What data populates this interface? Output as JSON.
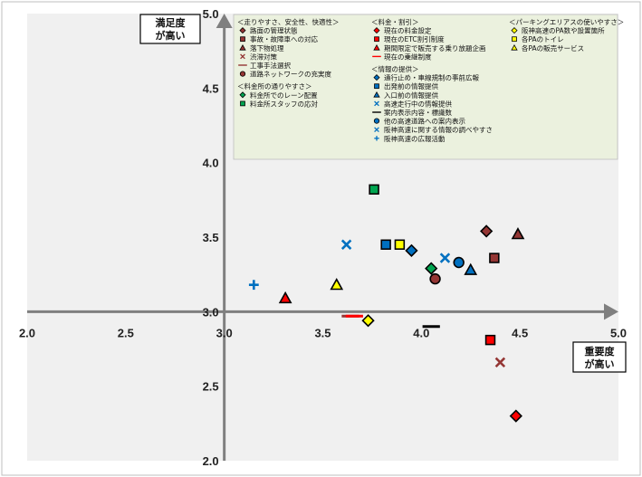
{
  "chart_data": {
    "type": "scatter",
    "xlim": [
      2.0,
      5.0
    ],
    "ylim": [
      2.0,
      5.0
    ],
    "origin": [
      3.0,
      3.0
    ],
    "x_ticks": [
      "2.0",
      "2.5",
      "3.0",
      "3.5",
      "4.0",
      "4.5",
      "5.0"
    ],
    "y_ticks": [
      "2.0",
      "2.5",
      "3.0",
      "3.5",
      "4.0",
      "4.5",
      "5.0"
    ],
    "x_axis_label": [
      "重要度",
      "が高い"
    ],
    "y_axis_label": [
      "満足度",
      "が高い"
    ],
    "legend_placement": "top-right inside plot",
    "colors": {
      "plot_bg": "#f0f0f0",
      "legend_bg": "#ebf1de",
      "axis": "#7f7f7f",
      "brown": "#943634",
      "red": "#ff0000",
      "green": "#00a550",
      "blue": "#0070c0",
      "yellow": "#ffff00"
    },
    "groups": [
      {
        "title": "＜走りやすさ、安全性、快適性＞",
        "series": [
          {
            "name": "路面の管理状態",
            "marker": "diamond",
            "color": "#943634",
            "stroke": "#000",
            "x": 4.33,
            "y": 3.54
          },
          {
            "name": "事故・故障車への対応",
            "marker": "square",
            "color": "#943634",
            "stroke": "#000",
            "x": 4.37,
            "y": 3.36
          },
          {
            "name": "落下物処理",
            "marker": "triangle",
            "color": "#943634",
            "stroke": "#000",
            "x": 4.49,
            "y": 3.52
          },
          {
            "name": "渋滞対策",
            "marker": "x",
            "color": "#943634",
            "stroke": "none",
            "x": 4.4,
            "y": 2.66
          },
          {
            "name": "工事手法選択",
            "marker": "dash",
            "color": "#943634",
            "stroke": "none",
            "x": 3.64,
            "y": 2.97
          },
          {
            "name": "道路ネットワークの充実度",
            "marker": "circle",
            "color": "#943634",
            "stroke": "#000",
            "x": 4.07,
            "y": 3.22
          }
        ]
      },
      {
        "title": "＜料金所の通りやすさ＞",
        "series": [
          {
            "name": "料金所でのレーン配置",
            "marker": "diamond",
            "color": "#00a550",
            "stroke": "#000",
            "x": 4.05,
            "y": 3.29
          },
          {
            "name": "料金所スタッフの応対",
            "marker": "square",
            "color": "#00a550",
            "stroke": "#000",
            "x": 3.76,
            "y": 3.82
          }
        ]
      },
      {
        "title": "＜料金・割引＞",
        "series": [
          {
            "name": "現在の料金設定",
            "marker": "diamond",
            "color": "#ff0000",
            "stroke": "#000",
            "x": 4.48,
            "y": 2.3
          },
          {
            "name": "現在のETC割引制度",
            "marker": "square",
            "color": "#ff0000",
            "stroke": "#000",
            "x": 4.35,
            "y": 2.81
          },
          {
            "name": "期間限定で販売する乗り放題企画",
            "marker": "triangle",
            "color": "#ff0000",
            "stroke": "#000",
            "x": 3.31,
            "y": 3.09
          },
          {
            "name": "現在の乗継制度",
            "marker": "dash",
            "color": "#ff0000",
            "stroke": "none",
            "x": 3.66,
            "y": 2.97
          }
        ]
      },
      {
        "title": "＜情報の提供＞",
        "series": [
          {
            "name": "通行止め・車線規制の事前広報",
            "marker": "diamond",
            "color": "#0070c0",
            "stroke": "#000",
            "x": 3.95,
            "y": 3.41
          },
          {
            "name": "出発前の情報提供",
            "marker": "square",
            "color": "#0070c0",
            "stroke": "#000",
            "x": 3.82,
            "y": 3.45
          },
          {
            "name": "入口前の情報提供",
            "marker": "triangle",
            "color": "#0070c0",
            "stroke": "#000",
            "x": 4.25,
            "y": 3.28
          },
          {
            "name": "高速走行中の情報提供",
            "marker": "x",
            "color": "#0070c0",
            "stroke": "none",
            "x": 3.62,
            "y": 3.45
          },
          {
            "name": "案内表示内容・標識数",
            "marker": "dash",
            "color": "#000000",
            "stroke": "none",
            "x": 4.05,
            "y": 2.9
          },
          {
            "name": "他の高速道路への案内表示",
            "marker": "circle",
            "color": "#0070c0",
            "stroke": "#000",
            "x": 4.19,
            "y": 3.33
          },
          {
            "name": "阪神高速に関する情報の調べやすさ",
            "marker": "x",
            "color": "#0070c0",
            "stroke": "none",
            "x": 4.12,
            "y": 3.36
          },
          {
            "name": "阪神高速の広報活動",
            "marker": "plus",
            "color": "#0070c0",
            "stroke": "none",
            "x": 3.15,
            "y": 3.18
          }
        ]
      },
      {
        "title": "＜パーキングエリアスの使いやすさ＞",
        "series": [
          {
            "name": "阪神高速のPA数や設置箇所",
            "marker": "diamond",
            "color": "#ffff00",
            "stroke": "#000",
            "x": 3.73,
            "y": 2.94
          },
          {
            "name": "各PAのトイレ",
            "marker": "square",
            "color": "#ffff00",
            "stroke": "#000",
            "x": 3.89,
            "y": 3.45
          },
          {
            "name": "各PAの販売サービス",
            "marker": "triangle",
            "color": "#ffff00",
            "stroke": "#000",
            "x": 3.57,
            "y": 3.18
          }
        ]
      }
    ]
  }
}
